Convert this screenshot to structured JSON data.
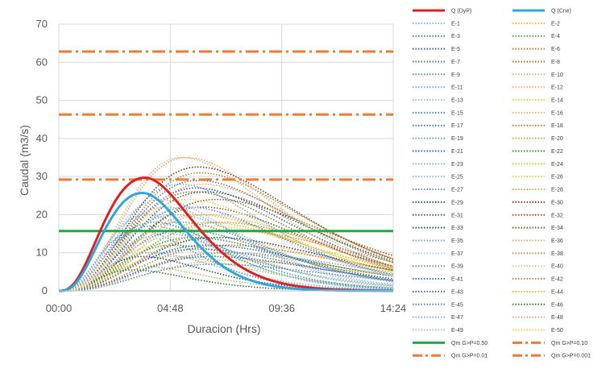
{
  "chart_data": {
    "type": "line",
    "xlabel": "Duracion (Hrs)",
    "ylabel": "Caudal (m3/s)",
    "x_unit": "hours",
    "x_ticks": [
      {
        "value": 0,
        "label": "00:00"
      },
      {
        "value": 4.8,
        "label": "04:48"
      },
      {
        "value": 9.6,
        "label": "09:36"
      },
      {
        "value": 14.4,
        "label": "14:24"
      }
    ],
    "xlim": [
      0,
      14.4
    ],
    "ylim": [
      0,
      70
    ],
    "y_ticks": [
      0,
      10,
      20,
      30,
      40,
      50,
      60,
      70
    ],
    "grid": "vertical and horizontal",
    "legend_position": "right",
    "main_series": [
      {
        "name": "Q (DyP)",
        "color": "#e02020",
        "peak_x": 3.7,
        "peak_y": 29.7,
        "shape": [
          3.0,
          4.2
        ]
      },
      {
        "name": "Q (Cne)",
        "color": "#2ea8dc",
        "peak_x": 3.6,
        "peak_y": 25.7,
        "shape": [
          3.2,
          4.8
        ]
      }
    ],
    "ensemble_colors": [
      "#9aaed0",
      "#e8c020",
      "#5577aa",
      "#44aa44",
      "#3f5f98",
      "#c77d3a",
      "#5a7f7f",
      "#a07830",
      "#6688bb",
      "#a5c985",
      "#7fb0d8",
      "#f0b080",
      "#a8c0e0",
      "#f2d040",
      "#3e8fcf",
      "#f4b070",
      "#4a7fb0",
      "#e07030",
      "#66aaee",
      "#d8a050",
      "#3070a0",
      "#339944",
      "#80b8dc",
      "#e8c040",
      "#9ab8d8",
      "#e8d050",
      "#7099c8",
      "#a2c465",
      "#2e4e86",
      "#774422",
      "#4a6050",
      "#8c5830",
      "#2a5090",
      "#70603a",
      "#8aa0c0",
      "#e6a870",
      "#bcd0e8",
      "#c09050",
      "#7a95b8",
      "#bcd898",
      "#4a78b8",
      "#dd8844",
      "#4a6a9a",
      "#e8c030",
      "#5a8ab8",
      "#3a7a3a",
      "#8cb0d8",
      "#f0a868",
      "#b0c0d8",
      "#f0d050"
    ],
    "ensemble": [
      {
        "name": "E-1",
        "peak_x": 4.6,
        "peak_y": 15.0
      },
      {
        "name": "E-2",
        "peak_x": 6.4,
        "peak_y": 18.0
      },
      {
        "name": "E-3",
        "peak_x": 5.6,
        "peak_y": 22.0
      },
      {
        "name": "E-4",
        "peak_x": 5.0,
        "peak_y": 12.0
      },
      {
        "name": "E-5",
        "peak_x": 5.9,
        "peak_y": 27.0
      },
      {
        "name": "E-6",
        "peak_x": 6.1,
        "peak_y": 31.0
      },
      {
        "name": "E-7",
        "peak_x": 6.0,
        "peak_y": 29.0
      },
      {
        "name": "E-8",
        "peak_x": 5.8,
        "peak_y": 26.0
      },
      {
        "name": "E-9",
        "peak_x": 3.4,
        "peak_y": 16.0
      },
      {
        "name": "E-10",
        "peak_x": 4.8,
        "peak_y": 9.0
      },
      {
        "name": "E-11",
        "peak_x": 3.8,
        "peak_y": 20.0
      },
      {
        "name": "E-12",
        "peak_x": 5.3,
        "peak_y": 35.0
      },
      {
        "name": "E-13",
        "peak_x": 4.4,
        "peak_y": 24.0
      },
      {
        "name": "E-14",
        "peak_x": 6.6,
        "peak_y": 14.0
      },
      {
        "name": "E-15",
        "peak_x": 4.1,
        "peak_y": 18.0
      },
      {
        "name": "E-16",
        "peak_x": 6.4,
        "peak_y": 20.0
      },
      {
        "name": "E-17",
        "peak_x": 5.4,
        "peak_y": 16.0
      },
      {
        "name": "E-18",
        "peak_x": 7.2,
        "peak_y": 12.0
      },
      {
        "name": "E-19",
        "peak_x": 5.2,
        "peak_y": 28.0
      },
      {
        "name": "E-20",
        "peak_x": 7.0,
        "peak_y": 10.0
      },
      {
        "name": "E-21",
        "peak_x": 6.4,
        "peak_y": 12.0
      },
      {
        "name": "E-22",
        "peak_x": 5.8,
        "peak_y": 14.0
      },
      {
        "name": "E-23",
        "peak_x": 4.0,
        "peak_y": 10.0
      },
      {
        "name": "E-24",
        "peak_x": 7.5,
        "peak_y": 8.0
      },
      {
        "name": "E-25",
        "peak_x": 4.6,
        "peak_y": 22.0
      },
      {
        "name": "E-26",
        "peak_x": 6.6,
        "peak_y": 17.0
      },
      {
        "name": "E-27",
        "peak_x": 4.0,
        "peak_y": 17.0
      },
      {
        "name": "E-28",
        "peak_x": 3.6,
        "peak_y": 6.5
      },
      {
        "name": "E-29",
        "peak_x": 6.8,
        "peak_y": 14.0
      },
      {
        "name": "E-30",
        "peak_x": 6.0,
        "peak_y": 32.5
      },
      {
        "name": "E-31",
        "peak_x": 6.3,
        "peak_y": 26.0
      },
      {
        "name": "E-32",
        "peak_x": 6.8,
        "peak_y": 24.0
      },
      {
        "name": "E-33",
        "peak_x": 3.6,
        "peak_y": 9.0
      },
      {
        "name": "E-34",
        "peak_x": 6.2,
        "peak_y": 22.0
      },
      {
        "name": "E-35",
        "peak_x": 7.4,
        "peak_y": 10.0
      },
      {
        "name": "E-36",
        "peak_x": 5.5,
        "peak_y": 35.0
      },
      {
        "name": "E-37",
        "peak_x": 5.5,
        "peak_y": 22.0
      },
      {
        "name": "E-38",
        "peak_x": 7.0,
        "peak_y": 18.0
      },
      {
        "name": "E-39",
        "peak_x": 5.2,
        "peak_y": 18.0
      },
      {
        "name": "E-40",
        "peak_x": 4.4,
        "peak_y": 12.0
      },
      {
        "name": "E-41",
        "peak_x": 6.0,
        "peak_y": 11.0
      },
      {
        "name": "E-42",
        "peak_x": 7.4,
        "peak_y": 16.0
      },
      {
        "name": "E-43",
        "peak_x": 6.6,
        "peak_y": 9.0
      },
      {
        "name": "E-44",
        "peak_x": 6.0,
        "peak_y": 20.0
      },
      {
        "name": "E-45",
        "peak_x": 6.8,
        "peak_y": 7.0
      },
      {
        "name": "E-46",
        "peak_x": 3.2,
        "peak_y": 5.5
      },
      {
        "name": "E-47",
        "peak_x": 5.0,
        "peak_y": 20.0
      },
      {
        "name": "E-48",
        "peak_x": 6.2,
        "peak_y": 28.0
      },
      {
        "name": "E-49",
        "peak_x": 4.8,
        "peak_y": 14.0
      },
      {
        "name": "E-50",
        "peak_x": 5.6,
        "peak_y": 24.0
      }
    ],
    "thresholds": [
      {
        "name": "Qm G>P=0.50",
        "value": 15.7,
        "color": "#1faa44",
        "style": "solid"
      },
      {
        "name": "Qm G>P=0.10",
        "value": 29.2,
        "color": "#ee7b30",
        "style": "dashdot"
      },
      {
        "name": "Qm G>P=0.01",
        "value": 46.3,
        "color": "#ee7b30",
        "style": "dashdot"
      },
      {
        "name": "Qm G>P=0.001",
        "value": 62.8,
        "color": "#ee7b30",
        "style": "dashdot"
      }
    ]
  }
}
